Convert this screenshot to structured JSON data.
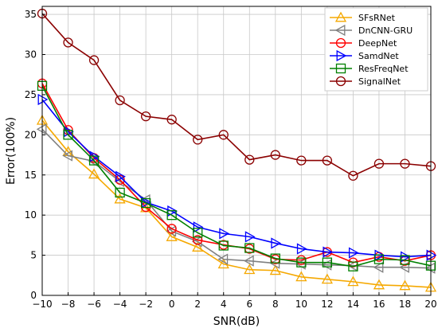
{
  "chart_data": {
    "type": "line",
    "title": "",
    "xlabel": "SNR(dB)",
    "ylabel": "Error(100%)",
    "xlim": [
      -10,
      20
    ],
    "ylim": [
      0,
      36
    ],
    "xticks": [
      -10,
      -8,
      -6,
      -4,
      -2,
      0,
      2,
      4,
      6,
      8,
      10,
      12,
      14,
      16,
      18,
      20
    ],
    "yticks": [
      0,
      5,
      10,
      15,
      20,
      25,
      30,
      35
    ],
    "grid": true,
    "legend_position": "top-right",
    "x": [
      -10,
      -8,
      -6,
      -4,
      -2,
      0,
      2,
      4,
      6,
      8,
      10,
      12,
      14,
      16,
      18,
      20
    ],
    "series": [
      {
        "name": "SFsRNet",
        "color": "#f5a800",
        "marker": "triangle-up",
        "values": [
          21.8,
          17.9,
          15.1,
          12.0,
          10.9,
          7.3,
          6.0,
          3.9,
          3.2,
          3.1,
          2.3,
          2.0,
          1.7,
          1.3,
          1.2,
          1.0
        ]
      },
      {
        "name": "DnCNN-GRU",
        "color": "#808080",
        "marker": "triangle-left",
        "values": [
          20.7,
          17.4,
          16.7,
          14.2,
          11.9,
          8.0,
          6.7,
          4.5,
          4.3,
          4.0,
          3.9,
          3.8,
          3.7,
          3.5,
          3.5,
          3.4
        ]
      },
      {
        "name": "DeepNet",
        "color": "#ff0000",
        "marker": "circle",
        "values": [
          26.4,
          20.6,
          17.1,
          14.4,
          11.0,
          8.3,
          6.9,
          6.3,
          5.8,
          4.5,
          4.4,
          5.4,
          4.1,
          4.8,
          4.3,
          5.0
        ]
      },
      {
        "name": "SamdNet",
        "color": "#0000ff",
        "marker": "triangle-right",
        "values": [
          24.4,
          20.4,
          17.3,
          14.8,
          11.6,
          10.5,
          8.5,
          7.7,
          7.3,
          6.5,
          5.8,
          5.4,
          5.3,
          5.0,
          4.8,
          5.0
        ]
      },
      {
        "name": "ResFreqNet",
        "color": "#008000",
        "marker": "square",
        "values": [
          26.1,
          20.0,
          16.8,
          12.8,
          11.5,
          10.0,
          7.8,
          6.2,
          5.9,
          4.6,
          4.1,
          4.1,
          3.6,
          4.5,
          4.4,
          3.7
        ]
      },
      {
        "name": "SignalNet",
        "color": "#8b0000",
        "marker": "circle",
        "values": [
          35.1,
          31.5,
          29.3,
          24.3,
          22.3,
          21.9,
          19.4,
          20.0,
          16.9,
          17.5,
          16.8,
          16.8,
          14.9,
          16.4,
          16.4,
          16.1
        ]
      }
    ]
  }
}
